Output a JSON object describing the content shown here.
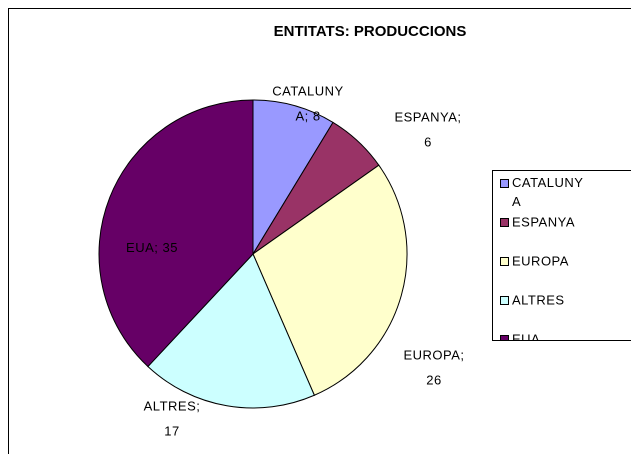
{
  "chart_data": {
    "type": "pie",
    "title": "ENTITATS:  PRODUCCIONS",
    "categories": [
      "CATALUNYA",
      "ESPANYA",
      "EUROPA",
      "ALTRES",
      "EUA"
    ],
    "values": [
      8,
      6,
      26,
      17,
      35
    ],
    "value_labels": [
      "CATALUNYA; 8",
      "ESPANYA; 6",
      "EUROPA; 26",
      "ALTRES; 17",
      "EUA; 35"
    ],
    "colors": [
      "#9999ff",
      "#993366",
      "#ffffcc",
      "#ccffff",
      "#660066"
    ],
    "legend": "right"
  }
}
